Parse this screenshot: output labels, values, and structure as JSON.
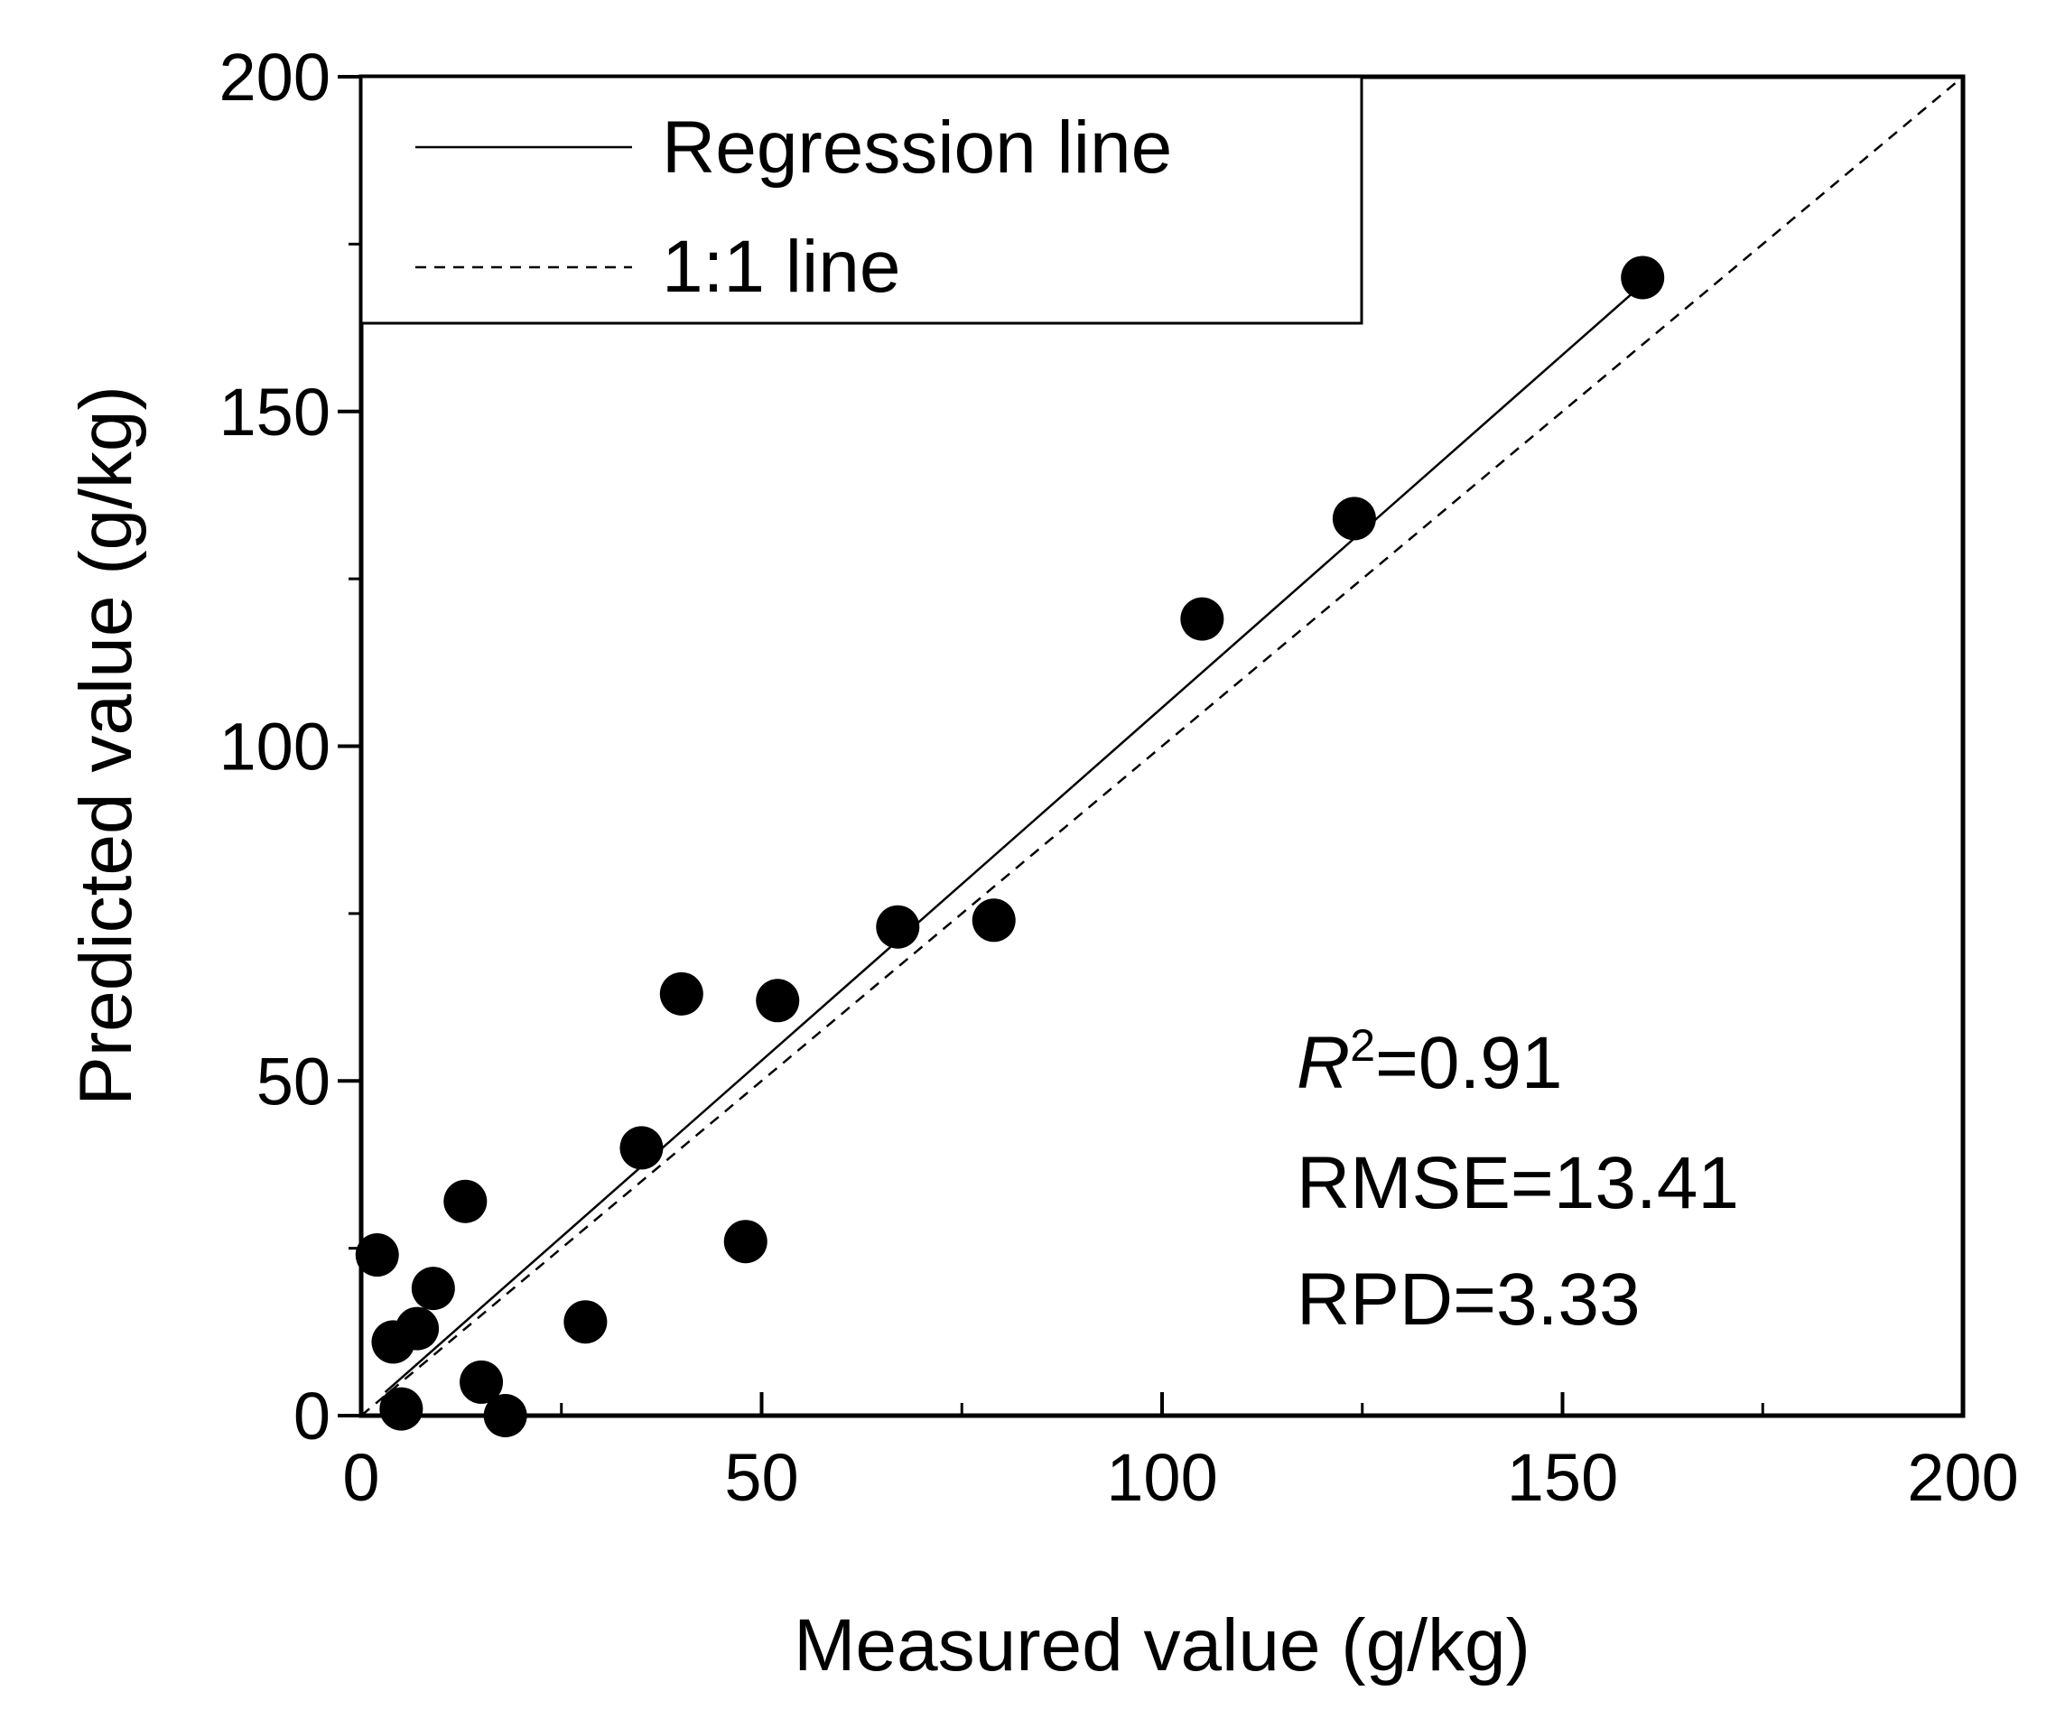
{
  "chart_data": {
    "type": "scatter",
    "xlabel": "Measured value (g/kg)",
    "ylabel": "Predicted value (g/kg)",
    "xlim": [
      0,
      200
    ],
    "ylim": [
      0,
      200
    ],
    "x_ticks": [
      "0",
      "50",
      "100",
      "150",
      "200"
    ],
    "y_ticks": [
      "0",
      "50",
      "100",
      "150",
      "200"
    ],
    "grid": false,
    "legend_position": "top-left",
    "legend": {
      "regression_label": "Regression line",
      "identity_label": "1:1 line"
    },
    "series": [
      {
        "points": [
          [
            2,
            24
          ],
          [
            4,
            11
          ],
          [
            5,
            1
          ],
          [
            7,
            13
          ],
          [
            9,
            19
          ],
          [
            13,
            32
          ],
          [
            15,
            5
          ],
          [
            18,
            0
          ],
          [
            28,
            14
          ],
          [
            35,
            40
          ],
          [
            40,
            63
          ],
          [
            48,
            26
          ],
          [
            52,
            62
          ],
          [
            67,
            73
          ],
          [
            79,
            74
          ],
          [
            105,
            119
          ],
          [
            124,
            134
          ],
          [
            160,
            170
          ]
        ]
      }
    ],
    "regression_line": {
      "x1": 3,
      "y1": 3.5,
      "x2": 160,
      "y2": 169
    },
    "identity_line": {
      "x1": 0,
      "y1": 0,
      "x2": 200,
      "y2": 200
    },
    "stats": {
      "r_symbol": "R",
      "r_exponent": "2",
      "r_value": "=0.91",
      "rmse": "RMSE=13.41",
      "rpd": "RPD=3.33"
    },
    "colors": {
      "points": "#000000",
      "lines": "#000000"
    }
  }
}
